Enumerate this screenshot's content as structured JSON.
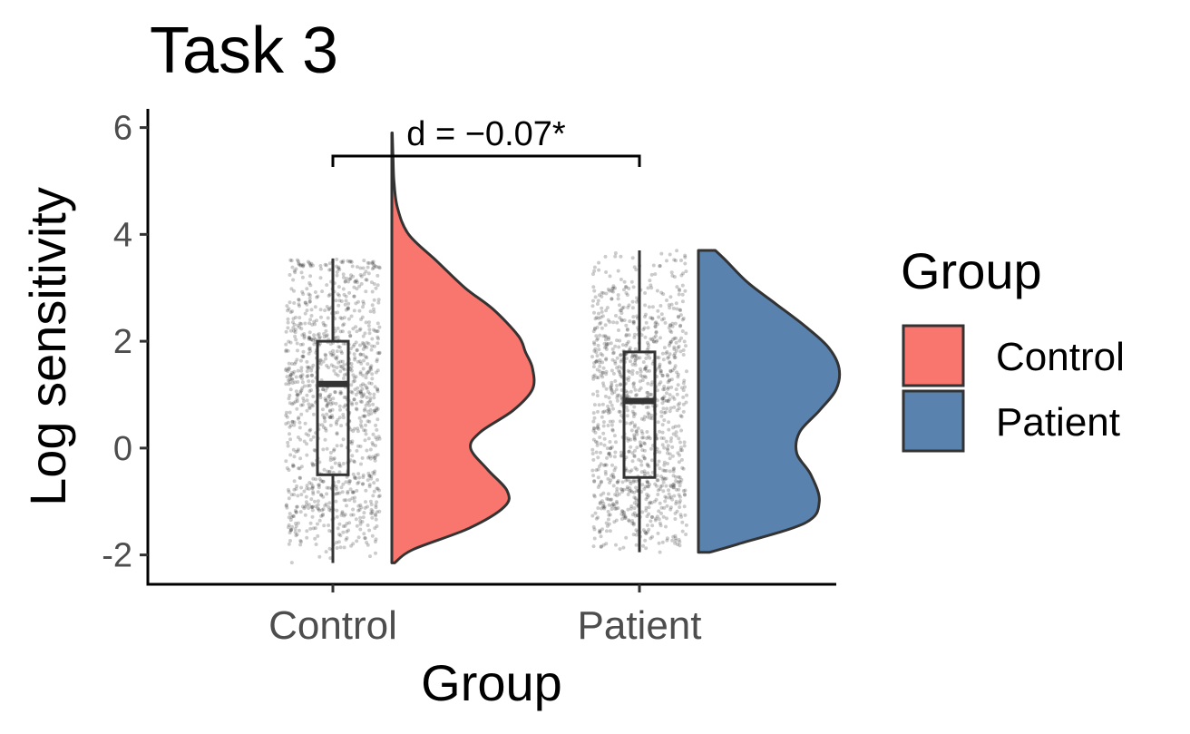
{
  "chart_data": {
    "type": "raincloud",
    "title": "Task 3",
    "xlabel": "Group",
    "ylabel": "Log sensitivity",
    "ylim": [
      -2.55,
      6.35
    ],
    "yticks": [
      -2,
      0,
      2,
      4,
      6
    ],
    "ytick_labels": [
      "-2",
      "0",
      "2",
      "4",
      "6"
    ],
    "categories": [
      "Control",
      "Patient"
    ],
    "legend": {
      "title": "Group",
      "position": "right",
      "entries": [
        {
          "label": "Control",
          "color": "#F8766D"
        },
        {
          "label": "Patient",
          "color": "#5A82AE"
        }
      ]
    },
    "series": [
      {
        "name": "Control",
        "color": "#F8766D",
        "box": {
          "min": -2.15,
          "q1": -0.5,
          "median": 1.2,
          "q3": 2.0,
          "max": 3.55
        },
        "density": {
          "y": [
            -2.15,
            -1.9,
            -1.5,
            -1.1,
            -0.8,
            -0.4,
            0.0,
            0.3,
            0.7,
            1.1,
            1.5,
            1.8,
            2.1,
            2.6,
            3.0,
            3.5,
            4.0,
            4.5,
            5.0,
            5.5,
            5.9
          ],
          "d": [
            0.02,
            0.15,
            0.55,
            0.8,
            0.82,
            0.68,
            0.56,
            0.63,
            0.86,
            1.0,
            1.0,
            0.95,
            0.9,
            0.72,
            0.52,
            0.32,
            0.12,
            0.04,
            0.015,
            0.008,
            0.003
          ]
        },
        "annotation": {
          "text": "d = −0.07*"
        }
      },
      {
        "name": "Patient",
        "color": "#5A82AE",
        "box": {
          "min": -1.95,
          "q1": -0.55,
          "median": 0.88,
          "q3": 1.8,
          "max": 3.7
        },
        "density": {
          "y": [
            -1.95,
            -1.8,
            -1.4,
            -1.0,
            -0.5,
            -0.1,
            0.3,
            0.7,
            1.1,
            1.5,
            1.9,
            2.3,
            2.7,
            3.1,
            3.5,
            3.7
          ],
          "d": [
            0.08,
            0.28,
            0.76,
            0.86,
            0.8,
            0.7,
            0.72,
            0.86,
            0.98,
            1.0,
            0.92,
            0.75,
            0.55,
            0.35,
            0.2,
            0.12
          ]
        }
      }
    ]
  }
}
